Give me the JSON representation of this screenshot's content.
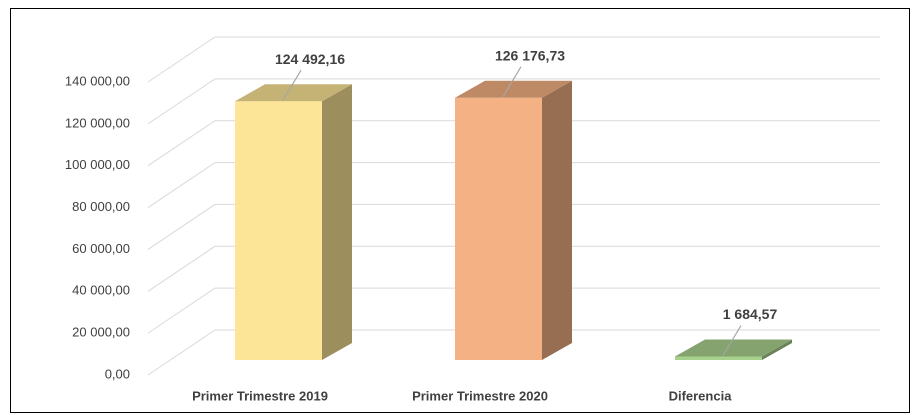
{
  "chart_data": {
    "type": "bar",
    "categories": [
      "Primer Trimestre 2019",
      "Primer Trimestre 2020",
      "Diferencia"
    ],
    "values": [
      124492.16,
      126176.73,
      1684.57
    ],
    "value_labels": [
      "124 492,16",
      "126 176,73",
      "1 684,57"
    ],
    "colors": [
      "#fde597",
      "#f4b183",
      "#a9d18e"
    ],
    "ylim": [
      0,
      140000
    ],
    "yticks": [
      {
        "value": 0,
        "label": "0,00"
      },
      {
        "value": 20000,
        "label": "20 000,00"
      },
      {
        "value": 40000,
        "label": "40 000,00"
      },
      {
        "value": 60000,
        "label": "60 000,00"
      },
      {
        "value": 80000,
        "label": "80 000,00"
      },
      {
        "value": 100000,
        "label": "100 000,00"
      },
      {
        "value": 120000,
        "label": "120 000,00"
      },
      {
        "value": 140000,
        "label": "140 000,00"
      }
    ],
    "grid": true
  }
}
